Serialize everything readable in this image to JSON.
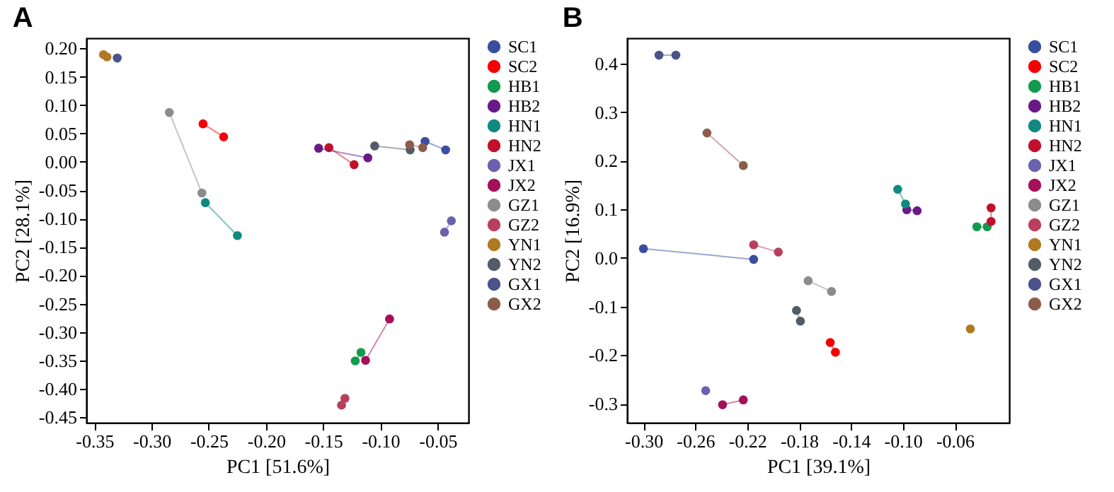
{
  "chart_data": [
    {
      "type": "line",
      "title": "A",
      "xlabel": "PC1 [51.6%]",
      "ylabel": "PC2 [28.1%]",
      "marker": "circle",
      "legend": "right",
      "grid": false,
      "xlim": [
        -0.357,
        -0.023
      ],
      "ylim": [
        -0.46,
        0.218
      ],
      "xticks": [
        -0.35,
        {
          "value": -0.3,
          "label": "-0.30"
        },
        -0.25,
        {
          "value": -0.2,
          "label": "-0.20"
        },
        -0.15,
        {
          "value": -0.1,
          "label": "-0.10"
        },
        -0.05
      ],
      "yticks": [
        {
          "value": 0.2,
          "label": "0.20"
        },
        0.15,
        {
          "value": 0.1,
          "label": "0.10"
        },
        0.05,
        {
          "value": 0,
          "label": "0.00"
        },
        -0.05,
        {
          "value": -0.1,
          "label": "-0.10"
        },
        -0.15,
        {
          "value": -0.2,
          "label": "-0.20"
        },
        -0.25,
        {
          "value": -0.3,
          "label": "-0.30"
        },
        -0.35,
        {
          "value": -0.4,
          "label": "-0.40"
        },
        -0.45
      ],
      "series": [
        {
          "name": "SC1",
          "color": "#3a4ea0",
          "x": [
            -0.061,
            -0.043
          ],
          "values": [
            0.036,
            0.021
          ]
        },
        {
          "name": "SC2",
          "color": "#f40000",
          "x": [
            -0.255,
            -0.237
          ],
          "values": [
            0.067,
            0.044
          ]
        },
        {
          "name": "HB1",
          "color": "#139a4e",
          "x": [
            -0.117,
            -0.122
          ],
          "values": [
            -0.336,
            -0.351
          ]
        },
        {
          "name": "HB2",
          "color": "#6a1a88",
          "x": [
            -0.154,
            -0.111
          ],
          "values": [
            0.024,
            0.007
          ]
        },
        {
          "name": "HN1",
          "color": "#108a80",
          "x": [
            -0.253,
            -0.225
          ],
          "values": [
            -0.072,
            -0.13
          ]
        },
        {
          "name": "HN2",
          "color": "#c2102c",
          "x": [
            -0.145,
            -0.123
          ],
          "values": [
            0.025,
            -0.005
          ]
        },
        {
          "name": "JX1",
          "color": "#6a62ae",
          "x": [
            -0.038,
            -0.044
          ],
          "values": [
            -0.104,
            -0.124
          ]
        },
        {
          "name": "JX2",
          "color": "#a5105c",
          "x": [
            -0.092,
            -0.113
          ],
          "values": [
            -0.277,
            -0.35
          ]
        },
        {
          "name": "GZ1",
          "color": "#8c8c8c",
          "x": [
            -0.2845,
            -0.256
          ],
          "values": [
            0.087,
            -0.055
          ]
        },
        {
          "name": "GZ2",
          "type": "scatter",
          "color": "#b8405e",
          "x": [
            -0.131,
            -0.134
          ],
          "values": [
            -0.417,
            -0.429
          ]
        },
        {
          "name": "YN1",
          "type": "scatter",
          "color": "#b07a22",
          "x": [
            -0.342,
            -0.339
          ],
          "values": [
            0.189,
            0.185
          ]
        },
        {
          "name": "YN2",
          "color": "#535c68",
          "x": [
            -0.105,
            -0.074
          ],
          "values": [
            0.028,
            0.021
          ]
        },
        {
          "name": "GX1",
          "type": "scatter",
          "color": "#4c528c",
          "x": [
            -0.33
          ],
          "values": [
            0.183
          ]
        },
        {
          "name": "GX2",
          "color": "#8c5c4a",
          "x": [
            -0.0745,
            -0.063
          ],
          "values": [
            0.03,
            0.025
          ]
        }
      ]
    },
    {
      "type": "line",
      "title": "B",
      "xlabel": "PC1 [39.1%]",
      "ylabel": "PC2 [16.9%]",
      "marker": "circle",
      "legend": "right",
      "grid": false,
      "xlim": [
        -0.3126,
        -0.018
      ],
      "ylim": [
        -0.339,
        0.452
      ],
      "xticks": [
        {
          "value": -0.3,
          "label": "-0.30"
        },
        -0.26,
        -0.22,
        -0.18,
        -0.14,
        {
          "value": -0.1,
          "label": "-0.10"
        },
        -0.06
      ],
      "yticks": [
        0.4,
        0.3,
        0.2,
        0.1,
        {
          "value": 0,
          "label": "0.0"
        },
        -0.1,
        -0.2,
        -0.3
      ],
      "series": [
        {
          "name": "SC1",
          "color": "#3a4ea0",
          "x": [
            -0.3,
            -0.215
          ],
          "values": [
            0.019,
            -0.003
          ]
        },
        {
          "name": "SC2",
          "color": "#f40000",
          "x": [
            -0.156,
            -0.152
          ],
          "values": [
            -0.174,
            -0.194
          ]
        },
        {
          "name": "HB1",
          "color": "#139a4e",
          "x": [
            -0.043,
            -0.035
          ],
          "values": [
            0.064,
            0.064
          ]
        },
        {
          "name": "HB2",
          "color": "#6a1a88",
          "x": [
            -0.097,
            -0.089
          ],
          "values": [
            0.099,
            0.097
          ]
        },
        {
          "name": "HN1",
          "color": "#108a80",
          "x": [
            -0.104,
            -0.098
          ],
          "values": [
            0.141,
            0.111
          ]
        },
        {
          "name": "HN2",
          "color": "#c2102c",
          "x": [
            -0.032,
            -0.032
          ],
          "values": [
            0.103,
            0.075
          ]
        },
        {
          "name": "JX1",
          "type": "scatter",
          "color": "#6a62ae",
          "x": [
            -0.252
          ],
          "values": [
            -0.273
          ]
        },
        {
          "name": "JX2",
          "color": "#a5105c",
          "x": [
            -0.239,
            -0.223
          ],
          "values": [
            -0.302,
            -0.292
          ]
        },
        {
          "name": "GZ1",
          "color": "#8c8c8c",
          "x": [
            -0.173,
            -0.155
          ],
          "values": [
            -0.047,
            -0.069
          ]
        },
        {
          "name": "GZ2",
          "color": "#b8405e",
          "x": [
            -0.215,
            -0.196
          ],
          "values": [
            0.027,
            0.012
          ]
        },
        {
          "name": "YN1",
          "type": "scatter",
          "color": "#b07a22",
          "x": [
            -0.048
          ],
          "values": [
            -0.146
          ]
        },
        {
          "name": "YN2",
          "color": "#535c68",
          "x": [
            -0.182,
            -0.179
          ],
          "values": [
            -0.108,
            -0.13
          ]
        },
        {
          "name": "GX1",
          "color": "#4c528c",
          "x": [
            -0.288,
            -0.275
          ],
          "values": [
            0.417,
            0.417
          ]
        },
        {
          "name": "GX2",
          "color": "#8c5c4a",
          "x": [
            -0.251,
            -0.223
          ],
          "values": [
            0.257,
            0.19
          ]
        }
      ]
    }
  ]
}
